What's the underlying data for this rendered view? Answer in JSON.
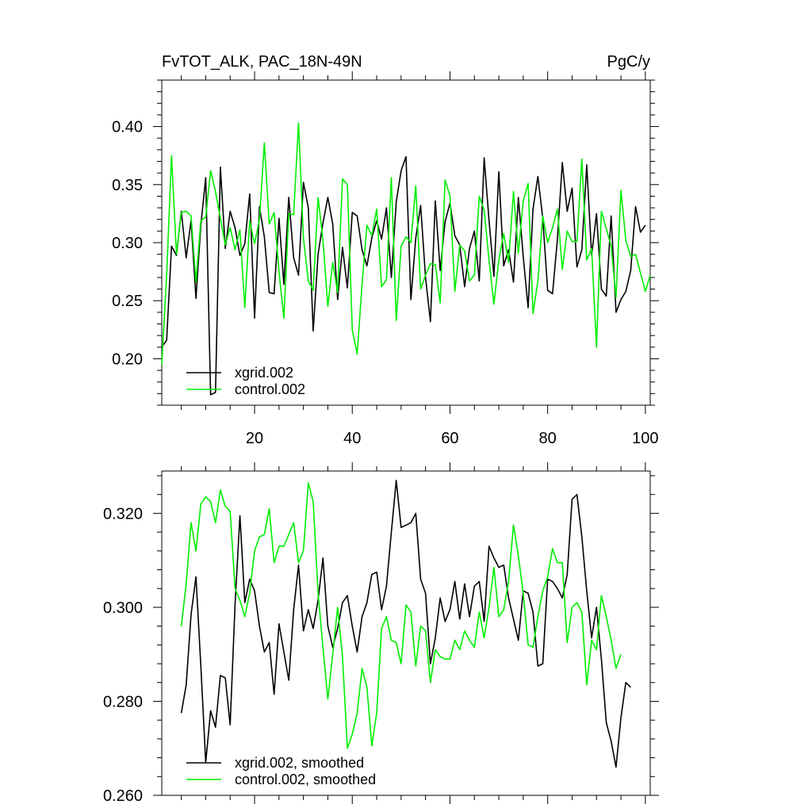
{
  "figure": {
    "title_left": "FvTOT_ALK, PAC_18N-49N",
    "title_right": "PgC/y"
  },
  "colors": {
    "xgrid": "#000000",
    "control": "#00ee00"
  },
  "chart_data": [
    {
      "type": "line",
      "title": "FvTOT_ALK, PAC_18N-49N",
      "units": "PgC/y",
      "xlim": [
        1,
        101
      ],
      "ylim": [
        0.16,
        0.44
      ],
      "xticks": [
        20,
        40,
        60,
        80,
        100
      ],
      "xtick_labels": [
        "20",
        "40",
        "60",
        "80",
        "100"
      ],
      "yticks": [
        0.2,
        0.25,
        0.3,
        0.35,
        0.4
      ],
      "ytick_labels": [
        "0.20",
        "0.25",
        "0.30",
        "0.35",
        "0.40"
      ],
      "legend": "bottom-left",
      "x_start": 1,
      "series": [
        {
          "name": "xgrid.002",
          "color": "#000000",
          "values": [
            0.21,
            0.216,
            0.297,
            0.289,
            0.327,
            0.287,
            0.319,
            0.252,
            0.315,
            0.356,
            0.169,
            0.171,
            0.365,
            0.295,
            0.327,
            0.313,
            0.289,
            0.299,
            0.342,
            0.235,
            0.331,
            0.305,
            0.257,
            0.256,
            0.321,
            0.264,
            0.339,
            0.287,
            0.272,
            0.352,
            0.33,
            0.224,
            0.29,
            0.317,
            0.339,
            0.316,
            0.251,
            0.296,
            0.261,
            0.326,
            0.323,
            0.294,
            0.28,
            0.304,
            0.319,
            0.303,
            0.33,
            0.27,
            0.335,
            0.362,
            0.374,
            0.251,
            0.304,
            0.332,
            0.27,
            0.232,
            0.336,
            0.276,
            0.318,
            0.334,
            0.306,
            0.298,
            0.262,
            0.295,
            0.31,
            0.267,
            0.373,
            0.319,
            0.271,
            0.361,
            0.28,
            0.294,
            0.266,
            0.339,
            0.288,
            0.244,
            0.329,
            0.357,
            0.321,
            0.259,
            0.256,
            0.303,
            0.369,
            0.327,
            0.347,
            0.279,
            0.294,
            0.367,
            0.289,
            0.325,
            0.26,
            0.254,
            0.323,
            0.24,
            0.251,
            0.258,
            0.276,
            0.331,
            0.309,
            0.315
          ]
        },
        {
          "name": "control.002",
          "color": "#00ee00",
          "values": [
            0.195,
            0.272,
            0.375,
            0.29,
            0.326,
            0.327,
            0.323,
            0.266,
            0.319,
            0.322,
            0.362,
            0.344,
            0.321,
            0.298,
            0.313,
            0.294,
            0.311,
            0.244,
            0.319,
            0.299,
            0.32,
            0.386,
            0.316,
            0.326,
            0.275,
            0.235,
            0.325,
            0.324,
            0.403,
            0.304,
            0.267,
            0.259,
            0.339,
            0.302,
            0.245,
            0.283,
            0.257,
            0.355,
            0.35,
            0.225,
            0.204,
            0.264,
            0.315,
            0.306,
            0.329,
            0.262,
            0.268,
            0.356,
            0.233,
            0.297,
            0.305,
            0.3,
            0.349,
            0.26,
            0.272,
            0.282,
            0.281,
            0.248,
            0.354,
            0.34,
            0.258,
            0.298,
            0.293,
            0.267,
            0.272,
            0.34,
            0.328,
            0.285,
            0.247,
            0.285,
            0.308,
            0.283,
            0.344,
            0.291,
            0.336,
            0.351,
            0.239,
            0.267,
            0.323,
            0.3,
            0.313,
            0.329,
            0.277,
            0.31,
            0.301,
            0.301,
            0.372,
            0.285,
            0.295,
            0.21,
            0.327,
            0.312,
            0.297,
            0.253,
            0.345,
            0.302,
            0.288,
            0.29,
            0.274,
            0.258,
            0.272
          ]
        }
      ]
    },
    {
      "type": "line",
      "xlim": [
        1,
        101
      ],
      "ylim": [
        0.26,
        0.329
      ],
      "xticks": [
        20,
        40,
        60,
        80,
        100
      ],
      "yticks": [
        0.26,
        0.28,
        0.3,
        0.32
      ],
      "ytick_labels": [
        "0.260",
        "0.280",
        "0.300",
        "0.320"
      ],
      "legend": "bottom-left",
      "x_start": 5,
      "series": [
        {
          "name": "xgrid.002, smoothed",
          "color": "#000000",
          "values": [
            0.2775,
            0.2835,
            0.2985,
            0.3065,
            0.2875,
            0.267,
            0.278,
            0.2745,
            0.2855,
            0.285,
            0.275,
            0.3005,
            0.3195,
            0.301,
            0.306,
            0.3035,
            0.296,
            0.2905,
            0.2925,
            0.2815,
            0.2965,
            0.2905,
            0.2845,
            0.2995,
            0.309,
            0.295,
            0.2995,
            0.2955,
            0.3015,
            0.3105,
            0.296,
            0.2915,
            0.2955,
            0.301,
            0.3025,
            0.296,
            0.2905,
            0.298,
            0.301,
            0.307,
            0.3075,
            0.2995,
            0.3045,
            0.316,
            0.327,
            0.317,
            0.3175,
            0.318,
            0.32,
            0.306,
            0.303,
            0.288,
            0.2935,
            0.302,
            0.297,
            0.2995,
            0.3055,
            0.2975,
            0.305,
            0.298,
            0.3045,
            0.3055,
            0.297,
            0.313,
            0.3105,
            0.3085,
            0.309,
            0.302,
            0.2975,
            0.293,
            0.3035,
            0.303,
            0.299,
            0.2875,
            0.288,
            0.306,
            0.3055,
            0.304,
            0.302,
            0.307,
            0.323,
            0.324,
            0.315,
            0.3035,
            0.2935,
            0.3,
            0.289,
            0.2755,
            0.2715,
            0.266,
            0.2765,
            0.284,
            0.283
          ]
        },
        {
          "name": "control.002, smoothed",
          "color": "#00ee00",
          "values": [
            0.296,
            0.305,
            0.318,
            0.312,
            0.322,
            0.3235,
            0.3225,
            0.318,
            0.325,
            0.3215,
            0.3205,
            0.304,
            0.3015,
            0.298,
            0.303,
            0.312,
            0.315,
            0.3155,
            0.321,
            0.3095,
            0.313,
            0.313,
            0.3155,
            0.318,
            0.3095,
            0.312,
            0.3265,
            0.3225,
            0.303,
            0.2915,
            0.2805,
            0.29,
            0.3,
            0.2895,
            0.27,
            0.273,
            0.2775,
            0.287,
            0.283,
            0.2705,
            0.2775,
            0.2955,
            0.298,
            0.293,
            0.2925,
            0.288,
            0.3005,
            0.299,
            0.2875,
            0.296,
            0.295,
            0.284,
            0.291,
            0.2895,
            0.289,
            0.289,
            0.293,
            0.291,
            0.295,
            0.293,
            0.2915,
            0.299,
            0.2935,
            0.3,
            0.3085,
            0.298,
            0.2995,
            0.3055,
            0.3175,
            0.311,
            0.303,
            0.292,
            0.2915,
            0.298,
            0.3035,
            0.3065,
            0.3125,
            0.3095,
            0.3095,
            0.2925,
            0.3,
            0.301,
            0.299,
            0.2835,
            0.293,
            0.291,
            0.3025,
            0.298,
            0.293,
            0.287,
            0.29
          ]
        }
      ]
    }
  ]
}
